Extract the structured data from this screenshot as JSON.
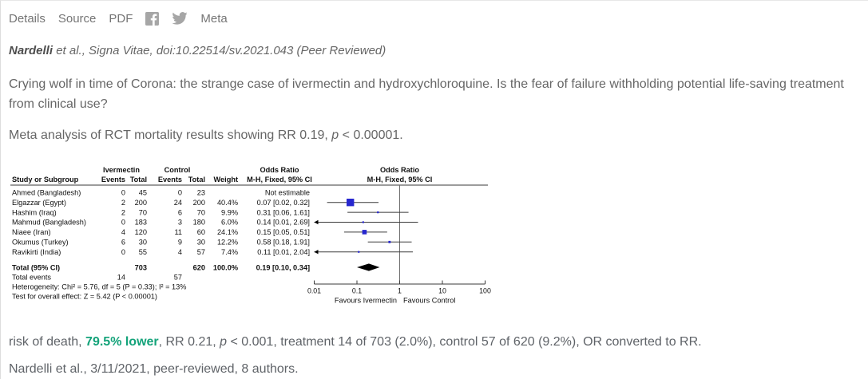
{
  "nav": {
    "details": "Details",
    "source": "Source",
    "pdf": "PDF",
    "meta": "Meta"
  },
  "citation": {
    "author": "Nardelli",
    "rest": " et al., Signa Vitae, doi:10.22514/sv.2021.043 (Peer Reviewed)"
  },
  "title": "Crying wolf in time of Corona: the strange case of ivermectin and hydroxychloroquine. Is the fear of failure withholding potential life-saving treatment from clinical use?",
  "meta_line": {
    "before": "Meta analysis of RCT mortality results showing RR 0.19, ",
    "p": "p",
    "after": " < 0.00001."
  },
  "result_line": {
    "prefix": "risk of death, ",
    "highlight": "79.5% lower",
    "mid": ", RR 0.21, ",
    "p": "p",
    "suffix": " < 0.001, treatment 14 of 703 (2.0%), control 57 of 620 (9.2%), OR converted to RR."
  },
  "footer_line": "Nardelli et al., 3/11/2021, peer-reviewed, 8 authors.",
  "colors": {
    "highlight_green": "#14a37a",
    "square_blue": "#2727cf",
    "plot_text": "#111111",
    "plot_line": "#3a3a3a",
    "null_line": "#6e6e6e"
  },
  "chart_data": {
    "type": "forest",
    "effect_label": "Odds Ratio",
    "method_label": "M-H, Fixed, 95% CI",
    "columns": {
      "study": "Study or Subgroup",
      "group1": "Ivermectin",
      "group2": "Control",
      "events": "Events",
      "total": "Total",
      "weight": "Weight"
    },
    "studies": [
      {
        "name": "Ahmed (Bangladesh)",
        "t_events": 0,
        "t_total": 45,
        "c_events": 0,
        "c_total": 23,
        "weight": "",
        "w": 0,
        "ci_text": "Not estimable",
        "or": null,
        "lo": null,
        "hi": null
      },
      {
        "name": "Elgazzar (Egypt)",
        "t_events": 2,
        "t_total": 200,
        "c_events": 24,
        "c_total": 200,
        "weight": "40.4%",
        "w": 40.4,
        "ci_text": "0.07 [0.02, 0.32]",
        "or": 0.07,
        "lo": 0.02,
        "hi": 0.32
      },
      {
        "name": "Hashim (Iraq)",
        "t_events": 2,
        "t_total": 70,
        "c_events": 6,
        "c_total": 70,
        "weight": "9.9%",
        "w": 9.9,
        "ci_text": "0.31 [0.06, 1.61]",
        "or": 0.31,
        "lo": 0.06,
        "hi": 1.61
      },
      {
        "name": "Mahmud (Bangladesh)",
        "t_events": 0,
        "t_total": 183,
        "c_events": 3,
        "c_total": 180,
        "weight": "6.0%",
        "w": 6.0,
        "ci_text": "0.14 [0.01, 2.69]",
        "or": 0.14,
        "lo": 0.01,
        "hi": 2.69
      },
      {
        "name": "Niaee (Iran)",
        "t_events": 4,
        "t_total": 120,
        "c_events": 11,
        "c_total": 60,
        "weight": "24.1%",
        "w": 24.1,
        "ci_text": "0.15 [0.05, 0.51]",
        "or": 0.15,
        "lo": 0.05,
        "hi": 0.51
      },
      {
        "name": "Okumus (Turkey)",
        "t_events": 6,
        "t_total": 30,
        "c_events": 9,
        "c_total": 30,
        "weight": "12.2%",
        "w": 12.2,
        "ci_text": "0.58 [0.18, 1.91]",
        "or": 0.58,
        "lo": 0.18,
        "hi": 1.91
      },
      {
        "name": "Ravikirti (India)",
        "t_events": 0,
        "t_total": 55,
        "c_events": 4,
        "c_total": 57,
        "weight": "7.4%",
        "w": 7.4,
        "ci_text": "0.11 [0.01, 2.04]",
        "or": 0.11,
        "lo": 0.01,
        "hi": 2.04
      }
    ],
    "total": {
      "label": "Total (95% CI)",
      "t_total": 703,
      "c_total": 620,
      "weight": "100.0%",
      "ci_text": "0.19 [0.10, 0.34]",
      "or": 0.19,
      "lo": 0.1,
      "hi": 0.34
    },
    "total_events": {
      "label": "Total events",
      "t": 14,
      "c": 57
    },
    "heterogeneity": "Heterogeneity: Chi² = 5.76, df = 5 (P = 0.33); I² = 13%",
    "overall_effect": "Test for overall effect: Z = 5.42 (P < 0.00001)",
    "axis": {
      "scale": "log",
      "ticks": [
        0.01,
        0.1,
        1,
        10,
        100
      ],
      "favours_left": "Favours Ivermectin",
      "favours_right": "Favours Control"
    }
  }
}
